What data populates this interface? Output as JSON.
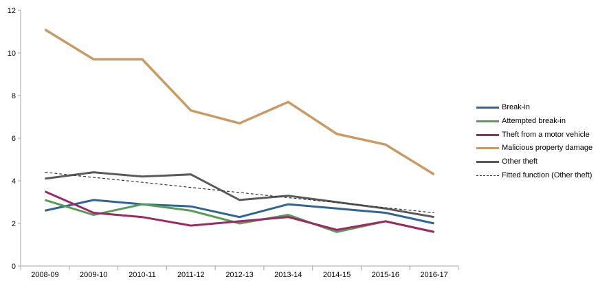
{
  "chart_data": {
    "type": "line",
    "title": "",
    "xlabel": "",
    "ylabel": "",
    "categories": [
      "2008-09",
      "2009-10",
      "2010-11",
      "2011-12",
      "2012-13",
      "2013-14",
      "2014-15",
      "2015-16",
      "2016-17"
    ],
    "series": [
      {
        "name": "Break-in",
        "color": "#2E6496",
        "style": "solid",
        "values": [
          2.6,
          3.1,
          2.9,
          2.8,
          2.3,
          2.9,
          2.7,
          2.5,
          2.0
        ]
      },
      {
        "name": "Attempted break-in",
        "color": "#579D57",
        "style": "solid",
        "values": [
          3.1,
          2.4,
          2.9,
          2.6,
          2.0,
          2.4,
          1.6,
          2.1,
          1.6
        ]
      },
      {
        "name": "Theft from a motor vehicle",
        "color": "#9C2963",
        "style": "solid",
        "values": [
          3.5,
          2.5,
          2.3,
          1.9,
          2.1,
          2.3,
          1.7,
          2.1,
          1.6
        ]
      },
      {
        "name": "Malicious property damage",
        "color": "#C99A63",
        "style": "solid",
        "values": [
          11.1,
          9.7,
          9.7,
          7.3,
          6.7,
          7.7,
          6.2,
          5.7,
          4.3
        ]
      },
      {
        "name": "Other theft",
        "color": "#595959",
        "style": "solid",
        "values": [
          4.1,
          4.4,
          4.2,
          4.3,
          3.1,
          3.3,
          3.0,
          2.7,
          2.3
        ]
      },
      {
        "name": "Fitted function (Other theft)",
        "color": "#333333",
        "style": "dashed",
        "values": [
          4.4,
          4.16,
          3.93,
          3.69,
          3.45,
          3.21,
          2.98,
          2.74,
          2.5
        ]
      }
    ],
    "yticks": [
      0,
      2,
      4,
      6,
      8,
      10,
      12
    ],
    "ylim": [
      0,
      12
    ],
    "grid": false,
    "legend_position": "right",
    "axis_color": "#A6A6A6",
    "text_color": "#000000",
    "background_color": "#FFFFFF"
  }
}
